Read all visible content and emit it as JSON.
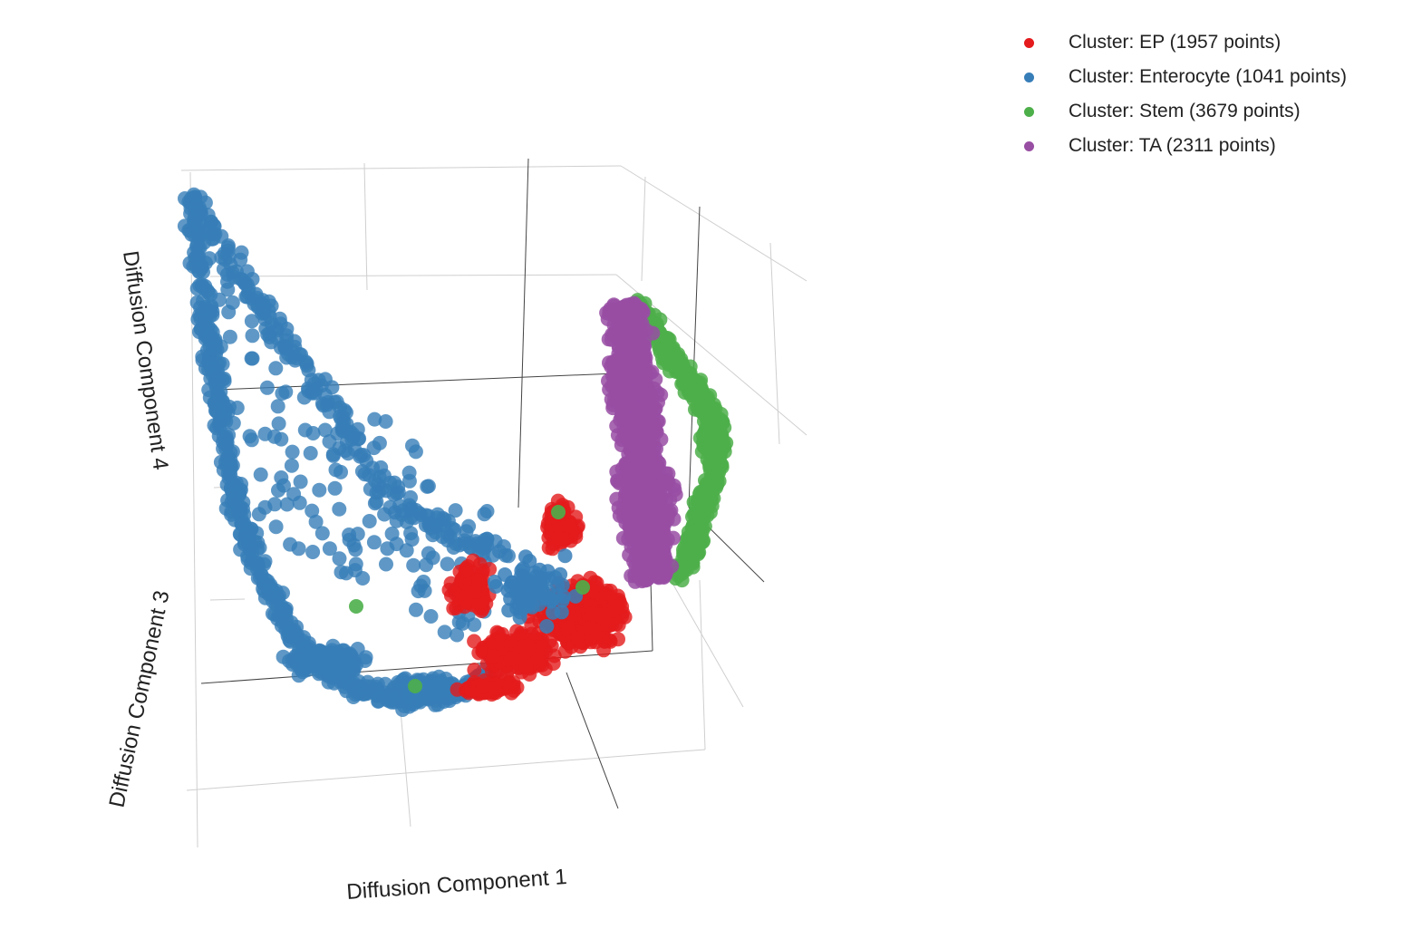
{
  "chart_data": {
    "type": "scatter",
    "dimensions": 3,
    "axes": {
      "x": "Diffusion Component 1",
      "y": "Diffusion Component 3",
      "z": "Diffusion Component 4"
    },
    "grid": true,
    "legend_position": "top-right",
    "series": [
      {
        "name": "Cluster: EP (1957 points)",
        "color": "#e41a1c",
        "region": "curve bottom, center-right",
        "sample_points": [
          [
            0.05,
            -0.12,
            -0.05
          ],
          [
            0.08,
            -0.1,
            -0.02
          ],
          [
            0.12,
            -0.08,
            0.0
          ],
          [
            0.15,
            -0.06,
            0.02
          ],
          [
            0.18,
            -0.05,
            0.05
          ],
          [
            0.1,
            -0.11,
            -0.04
          ],
          [
            0.06,
            -0.13,
            -0.06
          ],
          [
            0.2,
            -0.04,
            0.07
          ],
          [
            0.14,
            -0.09,
            0.01
          ]
        ]
      },
      {
        "name": "Cluster: Enterocyte (1041 points)",
        "color": "#377eb8",
        "region": "left arm extending upward",
        "sample_points": [
          [
            -0.3,
            0.4,
            0.35
          ],
          [
            -0.28,
            0.3,
            0.28
          ],
          [
            -0.25,
            0.2,
            0.2
          ],
          [
            -0.2,
            0.05,
            0.1
          ],
          [
            -0.15,
            -0.05,
            0.0
          ],
          [
            -0.1,
            -0.1,
            -0.05
          ],
          [
            -0.05,
            -0.12,
            -0.07
          ],
          [
            0.0,
            -0.1,
            -0.04
          ],
          [
            -0.22,
            0.15,
            0.3
          ]
        ]
      },
      {
        "name": "Cluster: Stem (3679 points)",
        "color": "#4daf4a",
        "region": "right arm, outer edge",
        "sample_points": [
          [
            0.35,
            0.25,
            0.3
          ],
          [
            0.33,
            0.15,
            0.22
          ],
          [
            0.3,
            0.05,
            0.15
          ],
          [
            0.28,
            0.3,
            0.35
          ],
          [
            0.32,
            0.2,
            0.26
          ],
          [
            -0.08,
            -0.1,
            -0.02
          ]
        ]
      },
      {
        "name": "Cluster: TA (2311 points)",
        "color": "#984ea3",
        "region": "right arm, inner",
        "sample_points": [
          [
            0.25,
            0.3,
            0.35
          ],
          [
            0.26,
            0.2,
            0.25
          ],
          [
            0.24,
            0.1,
            0.15
          ],
          [
            0.23,
            0.0,
            0.08
          ],
          [
            0.27,
            0.25,
            0.3
          ],
          [
            0.22,
            0.05,
            0.1
          ]
        ]
      }
    ]
  },
  "legend": {
    "items": [
      {
        "label": "Cluster: EP (1957 points)",
        "color": "#e41a1c"
      },
      {
        "label": "Cluster: Enterocyte (1041 points)",
        "color": "#377eb8"
      },
      {
        "label": "Cluster: Stem (3679 points)",
        "color": "#4daf4a"
      },
      {
        "label": "Cluster: TA (2311 points)",
        "color": "#984ea3"
      }
    ]
  }
}
